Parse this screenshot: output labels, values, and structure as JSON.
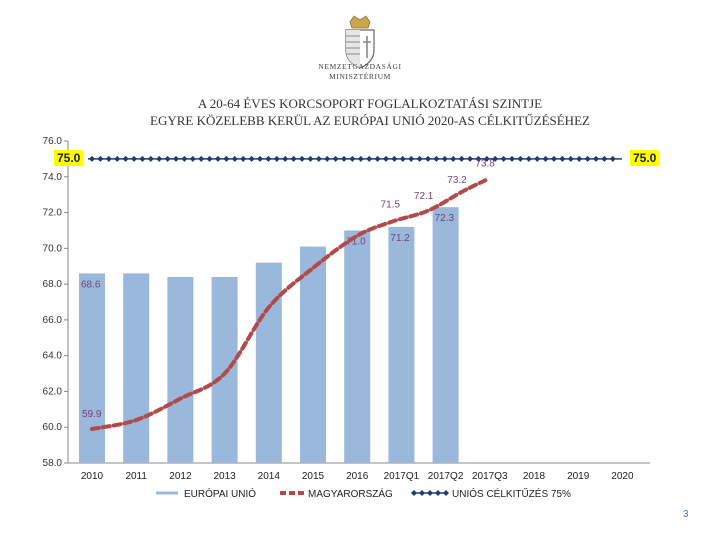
{
  "header": {
    "ministry_line_1": "Nemzetgazdasági",
    "ministry_line_2": "Minisztérium",
    "logo": "hungarian-coat-of-arms",
    "title_line_1": "A 20-64 ÉVES KORCSOPORT FOGLALKOZTATÁSI SZINTJE",
    "title_line_2": "EGYRE KÖZELEBB KERÜL AZ EURÓPAI UNIÓ 2020-AS CÉLKITŰZÉSÉHEZ"
  },
  "page_number": "3",
  "colors": {
    "bars": "#9ab8dc",
    "hungary_line": "#b24a4a",
    "target_line": "#1f3b73",
    "target_label_bg": "#ffff00",
    "label_text": "#7b3f74"
  },
  "chart_data": {
    "type": "bar",
    "title": "",
    "xlabel": "",
    "ylabel": "",
    "ylim": [
      58.0,
      76.0
    ],
    "y_ticks": [
      "58.0",
      "60.0",
      "62.0",
      "64.0",
      "66.0",
      "68.0",
      "70.0",
      "72.0",
      "74.0",
      "76.0"
    ],
    "categories": [
      "2010",
      "2011",
      "2012",
      "2013",
      "2014",
      "2015",
      "2016",
      "2017Q1",
      "2017Q2",
      "2017Q3",
      "2018",
      "2019",
      "2020"
    ],
    "grid": false,
    "legend_position": "bottom",
    "series": [
      {
        "name": "EURÓPAI UNIÓ",
        "kind": "bar",
        "values": [
          68.6,
          68.6,
          68.4,
          68.4,
          69.2,
          70.1,
          71.0,
          71.2,
          72.3,
          null,
          null,
          null,
          null
        ],
        "data_labels": [
          {
            "index": 0,
            "text": "68.6"
          },
          {
            "index": 6,
            "text": "71.0"
          },
          {
            "index": 7,
            "text": "71.2"
          },
          {
            "index": 8,
            "text": "72.3"
          }
        ]
      },
      {
        "name": "MAGYARORSZÁG",
        "kind": "line",
        "style": "dashed",
        "values": [
          59.9,
          60.4,
          61.6,
          63.0,
          66.7,
          68.9,
          70.7,
          71.5,
          72.1,
          73.2,
          73.8,
          null,
          null
        ],
        "x_positions": [
          0.0,
          1.0,
          2.0,
          3.0,
          4.0,
          5.0,
          6.0,
          6.8,
          7.6,
          8.4,
          8.9,
          null,
          null
        ],
        "data_labels": [
          {
            "index": 0,
            "text": "59.9"
          },
          {
            "index": 7,
            "text": "71.5"
          },
          {
            "index": 8,
            "text": "72.1"
          },
          {
            "index": 9,
            "text": "73.2"
          },
          {
            "index": 10,
            "text": "73.8"
          }
        ]
      },
      {
        "name": "UNIÓS CÉLKITŰZÉS 75%",
        "kind": "line",
        "style": "diamond-markers",
        "value": 75.0,
        "labels": [
          "75.0",
          "75.0"
        ]
      }
    ]
  }
}
